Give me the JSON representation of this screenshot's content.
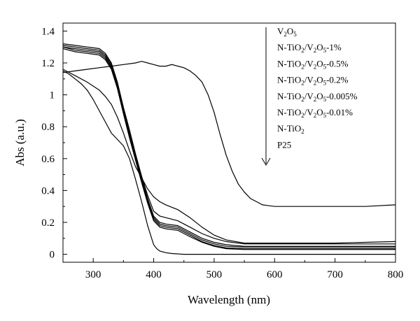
{
  "chart_data": {
    "type": "line",
    "xlabel": "Wavelength (nm)",
    "ylabel": "Abs (a.u.)",
    "xlim": [
      250,
      800
    ],
    "ylim": [
      -0.05,
      1.45
    ],
    "xticks": [
      300,
      400,
      500,
      600,
      700,
      800
    ],
    "xtick_labels": [
      "300",
      "400",
      "500",
      "600",
      "700",
      "800"
    ],
    "yticks": [
      0,
      0.2,
      0.4,
      0.6,
      0.8,
      1,
      1.2,
      1.4
    ],
    "ytick_labels": [
      "0",
      "0.2",
      "0.4",
      "0.6",
      "0.8",
      "1",
      "1.2",
      "1.4"
    ],
    "legend_position": "top-right",
    "legend_arrow": "down",
    "legend": [
      {
        "base": "V",
        "sub1": "2",
        "mid": "O",
        "sub2": "5",
        "tail": ""
      },
      {
        "base": "N-TiO",
        "sub1": "2",
        "mid": "/V",
        "sub2": "2",
        "mid2": "O",
        "sub3": "5",
        "tail": "-1%"
      },
      {
        "base": "N-TiO",
        "sub1": "2",
        "mid": "/V",
        "sub2": "2",
        "mid2": "O",
        "sub3": "5",
        "tail": "-0.5%"
      },
      {
        "base": "N-TiO",
        "sub1": "2",
        "mid": "/V",
        "sub2": "2",
        "mid2": "O",
        "sub3": "5",
        "tail": "-0.2%"
      },
      {
        "base": "N-TiO",
        "sub1": "2",
        "mid": "/V",
        "sub2": "2",
        "mid2": "O",
        "sub3": "5",
        "tail": "-0.005%"
      },
      {
        "base": "N-TiO",
        "sub1": "2",
        "mid": "/V",
        "sub2": "2",
        "mid2": "O",
        "sub3": "5",
        "tail": "-0.01%"
      },
      {
        "base": "N-TiO",
        "sub1": "2",
        "tail": ""
      },
      {
        "base": "P25",
        "tail": ""
      }
    ],
    "series": [
      {
        "x": [
          250,
          270,
          290,
          310,
          330,
          350,
          370,
          380,
          390,
          400,
          410,
          420,
          430,
          440,
          450,
          460,
          470,
          480,
          490,
          500,
          510,
          520,
          530,
          540,
          550,
          560,
          570,
          580,
          600,
          650,
          700,
          750,
          800
        ],
        "y": [
          1.14,
          1.15,
          1.16,
          1.17,
          1.18,
          1.19,
          1.2,
          1.21,
          1.2,
          1.19,
          1.18,
          1.18,
          1.19,
          1.18,
          1.17,
          1.15,
          1.12,
          1.08,
          1.0,
          0.89,
          0.75,
          0.62,
          0.52,
          0.44,
          0.39,
          0.35,
          0.33,
          0.31,
          0.3,
          0.3,
          0.3,
          0.3,
          0.31
        ]
      },
      {
        "x": [
          250,
          270,
          290,
          310,
          320,
          330,
          340,
          350,
          360,
          370,
          380,
          390,
          400,
          410,
          420,
          440,
          460,
          480,
          500,
          520,
          550,
          600,
          650,
          700,
          750,
          800
        ],
        "y": [
          1.16,
          1.12,
          1.08,
          1.03,
          0.99,
          0.94,
          0.86,
          0.76,
          0.65,
          0.55,
          0.48,
          0.41,
          0.36,
          0.33,
          0.31,
          0.28,
          0.23,
          0.17,
          0.12,
          0.09,
          0.07,
          0.07,
          0.07,
          0.07,
          0.075,
          0.08
        ]
      },
      {
        "x": [
          250,
          270,
          290,
          310,
          320,
          330,
          340,
          350,
          360,
          370,
          380,
          390,
          400,
          410,
          420,
          440,
          460,
          480,
          500,
          520,
          550,
          600,
          650,
          700,
          750,
          800
        ],
        "y": [
          1.32,
          1.31,
          1.3,
          1.29,
          1.26,
          1.2,
          1.08,
          0.92,
          0.78,
          0.63,
          0.49,
          0.37,
          0.27,
          0.24,
          0.23,
          0.21,
          0.17,
          0.13,
          0.1,
          0.08,
          0.065,
          0.065,
          0.065,
          0.065,
          0.065,
          0.065
        ]
      },
      {
        "x": [
          250,
          270,
          290,
          310,
          320,
          330,
          340,
          350,
          360,
          370,
          380,
          390,
          400,
          410,
          420,
          440,
          460,
          480,
          500,
          520,
          550,
          600,
          650,
          700,
          750,
          800
        ],
        "y": [
          1.31,
          1.3,
          1.29,
          1.28,
          1.25,
          1.19,
          1.07,
          0.91,
          0.76,
          0.62,
          0.48,
          0.35,
          0.24,
          0.2,
          0.19,
          0.18,
          0.14,
          0.1,
          0.075,
          0.06,
          0.05,
          0.05,
          0.05,
          0.05,
          0.05,
          0.05
        ]
      },
      {
        "x": [
          250,
          270,
          290,
          310,
          320,
          330,
          340,
          350,
          360,
          370,
          380,
          390,
          400,
          410,
          420,
          440,
          460,
          480,
          500,
          520,
          550,
          600,
          650,
          700,
          750,
          800
        ],
        "y": [
          1.3,
          1.29,
          1.28,
          1.27,
          1.24,
          1.18,
          1.06,
          0.9,
          0.75,
          0.61,
          0.47,
          0.34,
          0.23,
          0.19,
          0.18,
          0.17,
          0.13,
          0.09,
          0.065,
          0.05,
          0.045,
          0.045,
          0.045,
          0.045,
          0.045,
          0.045
        ]
      },
      {
        "x": [
          250,
          270,
          290,
          310,
          320,
          330,
          340,
          350,
          360,
          370,
          380,
          390,
          400,
          410,
          420,
          440,
          460,
          480,
          500,
          520,
          550,
          600,
          650,
          700,
          750,
          800
        ],
        "y": [
          1.3,
          1.28,
          1.27,
          1.26,
          1.23,
          1.17,
          1.05,
          0.89,
          0.74,
          0.6,
          0.46,
          0.33,
          0.22,
          0.18,
          0.17,
          0.16,
          0.12,
          0.08,
          0.055,
          0.04,
          0.035,
          0.035,
          0.035,
          0.035,
          0.035,
          0.035
        ]
      },
      {
        "x": [
          250,
          270,
          290,
          310,
          320,
          330,
          340,
          350,
          360,
          370,
          380,
          390,
          400,
          410,
          420,
          440,
          460,
          480,
          500,
          520,
          550,
          600,
          650,
          700,
          750,
          800
        ],
        "y": [
          1.29,
          1.27,
          1.26,
          1.25,
          1.22,
          1.16,
          1.04,
          0.88,
          0.73,
          0.59,
          0.45,
          0.32,
          0.21,
          0.17,
          0.16,
          0.15,
          0.11,
          0.075,
          0.05,
          0.035,
          0.03,
          0.03,
          0.03,
          0.03,
          0.03,
          0.03
        ]
      },
      {
        "x": [
          250,
          260,
          270,
          280,
          290,
          300,
          310,
          320,
          330,
          340,
          350,
          360,
          370,
          380,
          390,
          400,
          405,
          410,
          420,
          430,
          450,
          500,
          550,
          600,
          700,
          800
        ],
        "y": [
          1.15,
          1.13,
          1.1,
          1.07,
          1.03,
          0.97,
          0.9,
          0.83,
          0.76,
          0.72,
          0.68,
          0.6,
          0.47,
          0.33,
          0.18,
          0.06,
          0.035,
          0.02,
          0.01,
          0.005,
          0.0,
          0.0,
          0.0,
          0.0,
          0.0,
          0.0
        ]
      }
    ]
  }
}
